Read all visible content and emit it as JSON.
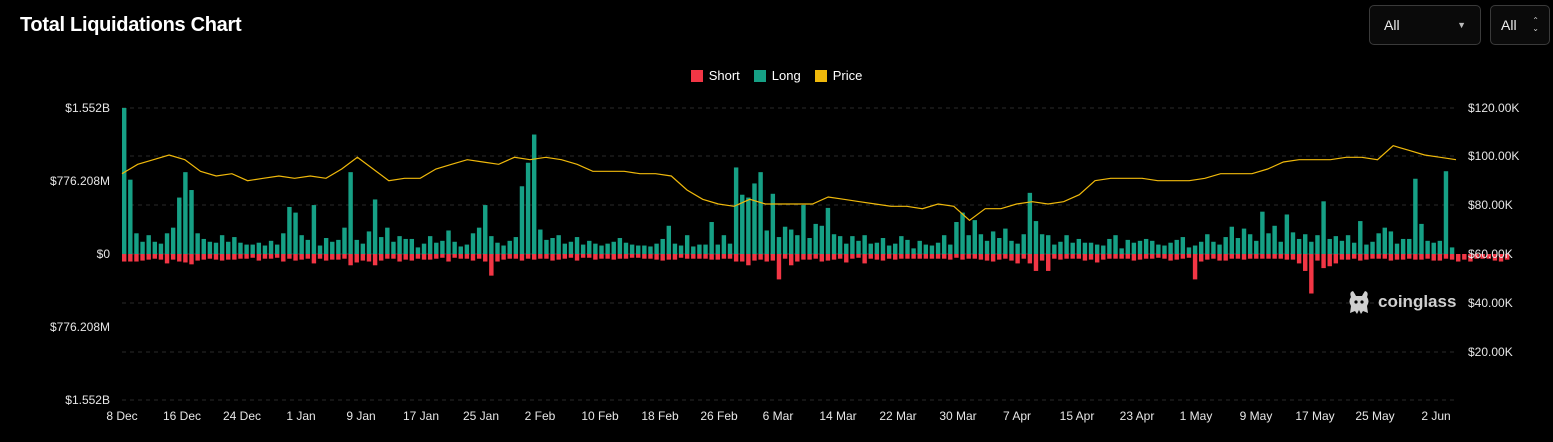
{
  "header": {
    "title": "Total Liquidations Chart",
    "range_select": "All",
    "coin_select": "All"
  },
  "legend": [
    {
      "label": "Short",
      "color": "#f23645"
    },
    {
      "label": "Long",
      "color": "#16a085"
    },
    {
      "label": "Price",
      "color": "#f0b90b"
    }
  ],
  "watermark": "coinglass",
  "chart_data": {
    "type": "bar",
    "title": "Total Liquidations Chart",
    "series": [
      {
        "name": "Long",
        "color": "#16a085",
        "values": [
          1.552,
          0.79,
          0.22,
          0.13,
          0.2,
          0.13,
          0.11,
          0.22,
          0.28,
          0.6,
          0.87,
          0.68,
          0.22,
          0.16,
          0.13,
          0.12,
          0.2,
          0.13,
          0.18,
          0.12,
          0.1,
          0.1,
          0.12,
          0.09,
          0.14,
          0.1,
          0.22,
          0.5,
          0.44,
          0.2,
          0.15,
          0.52,
          0.09,
          0.17,
          0.13,
          0.15,
          0.28,
          0.87,
          0.15,
          0.11,
          0.24,
          0.58,
          0.18,
          0.28,
          0.13,
          0.19,
          0.16,
          0.16,
          0.07,
          0.11,
          0.19,
          0.12,
          0.14,
          0.25,
          0.13,
          0.08,
          0.1,
          0.22,
          0.28,
          0.52,
          0.19,
          0.12,
          0.09,
          0.14,
          0.18,
          0.72,
          0.97,
          1.27,
          0.26,
          0.15,
          0.17,
          0.2,
          0.11,
          0.13,
          0.18,
          0.1,
          0.14,
          0.11,
          0.09,
          0.11,
          0.13,
          0.17,
          0.12,
          0.1,
          0.09,
          0.09,
          0.08,
          0.11,
          0.16,
          0.3,
          0.11,
          0.09,
          0.2,
          0.08,
          0.1,
          0.1,
          0.34,
          0.1,
          0.2,
          0.11,
          0.92,
          0.63,
          0.6,
          0.75,
          0.87,
          0.25,
          0.64,
          0.18,
          0.29,
          0.26,
          0.2,
          0.52,
          0.17,
          0.32,
          0.3,
          0.49,
          0.21,
          0.19,
          0.11,
          0.19,
          0.14,
          0.2,
          0.11,
          0.12,
          0.17,
          0.09,
          0.11,
          0.19,
          0.15,
          0.06,
          0.14,
          0.1,
          0.09,
          0.12,
          0.2,
          0.1,
          0.34,
          0.44,
          0.2,
          0.36,
          0.21,
          0.14,
          0.24,
          0.17,
          0.27,
          0.14,
          0.11,
          0.21,
          0.65,
          0.35,
          0.21,
          0.2,
          0.1,
          0.13,
          0.2,
          0.12,
          0.16,
          0.12,
          0.12,
          0.1,
          0.09,
          0.16,
          0.2,
          0.06,
          0.15,
          0.12,
          0.14,
          0.16,
          0.14,
          0.1,
          0.09,
          0.12,
          0.15,
          0.18,
          0.07,
          0.09,
          0.13,
          0.21,
          0.13,
          0.1,
          0.18,
          0.29,
          0.17,
          0.27,
          0.21,
          0.14,
          0.45,
          0.22,
          0.3,
          0.13,
          0.42,
          0.23,
          0.16,
          0.21,
          0.13,
          0.2,
          0.56,
          0.16,
          0.19,
          0.14,
          0.2,
          0.12,
          0.35,
          0.1,
          0.13,
          0.22,
          0.28,
          0.24,
          0.11,
          0.16,
          0.16,
          0.8,
          0.32,
          0.14,
          0.12,
          0.14,
          0.88,
          0.07
        ]
      },
      {
        "name": "Short",
        "color": "#f23645",
        "values": [
          0.08,
          0.08,
          0.08,
          0.07,
          0.06,
          0.05,
          0.06,
          0.1,
          0.06,
          0.08,
          0.09,
          0.11,
          0.07,
          0.06,
          0.05,
          0.06,
          0.07,
          0.06,
          0.06,
          0.05,
          0.05,
          0.04,
          0.07,
          0.05,
          0.05,
          0.04,
          0.08,
          0.05,
          0.07,
          0.06,
          0.05,
          0.1,
          0.05,
          0.07,
          0.06,
          0.06,
          0.05,
          0.12,
          0.09,
          0.07,
          0.08,
          0.12,
          0.07,
          0.05,
          0.05,
          0.08,
          0.06,
          0.07,
          0.05,
          0.06,
          0.06,
          0.05,
          0.04,
          0.08,
          0.04,
          0.05,
          0.05,
          0.07,
          0.05,
          0.08,
          0.23,
          0.08,
          0.06,
          0.05,
          0.05,
          0.07,
          0.05,
          0.06,
          0.05,
          0.05,
          0.07,
          0.06,
          0.05,
          0.04,
          0.07,
          0.04,
          0.04,
          0.06,
          0.05,
          0.05,
          0.06,
          0.05,
          0.05,
          0.04,
          0.04,
          0.05,
          0.05,
          0.06,
          0.07,
          0.06,
          0.06,
          0.04,
          0.05,
          0.05,
          0.05,
          0.05,
          0.06,
          0.06,
          0.05,
          0.05,
          0.08,
          0.08,
          0.12,
          0.07,
          0.06,
          0.08,
          0.07,
          0.27,
          0.05,
          0.12,
          0.08,
          0.06,
          0.06,
          0.05,
          0.08,
          0.07,
          0.06,
          0.05,
          0.09,
          0.05,
          0.04,
          0.1,
          0.05,
          0.06,
          0.07,
          0.05,
          0.06,
          0.05,
          0.05,
          0.05,
          0.05,
          0.05,
          0.05,
          0.05,
          0.05,
          0.06,
          0.04,
          0.06,
          0.05,
          0.05,
          0.06,
          0.07,
          0.08,
          0.06,
          0.05,
          0.07,
          0.1,
          0.05,
          0.1,
          0.18,
          0.07,
          0.18,
          0.05,
          0.06,
          0.05,
          0.05,
          0.05,
          0.07,
          0.06,
          0.09,
          0.06,
          0.05,
          0.05,
          0.05,
          0.05,
          0.07,
          0.06,
          0.05,
          0.05,
          0.04,
          0.05,
          0.07,
          0.06,
          0.05,
          0.04,
          0.27,
          0.08,
          0.06,
          0.05,
          0.07,
          0.07,
          0.05,
          0.05,
          0.06,
          0.05,
          0.05,
          0.05,
          0.05,
          0.05,
          0.05,
          0.06,
          0.06,
          0.1,
          0.18,
          0.42,
          0.07,
          0.15,
          0.13,
          0.1,
          0.06,
          0.06,
          0.05,
          0.07,
          0.06,
          0.05,
          0.05,
          0.05,
          0.07,
          0.06,
          0.06,
          0.05,
          0.06,
          0.06,
          0.05,
          0.07,
          0.07,
          0.05,
          0.06,
          0.08,
          0.06,
          0.08,
          0.05,
          0.05,
          0.05,
          0.07,
          0.08,
          0.06
        ]
      },
      {
        "name": "Price",
        "color": "#f0b90b",
        "values": [
          97,
          101,
          103,
          105,
          103,
          98,
          96,
          97,
          94,
          95,
          96,
          95,
          96,
          95,
          99,
          104,
          99,
          94,
          95,
          95,
          99,
          101,
          103,
          102,
          101,
          104,
          103,
          104,
          103,
          101,
          98,
          98,
          98,
          97,
          97,
          96,
          90,
          86,
          84,
          83,
          86,
          84,
          84,
          84,
          84,
          87,
          86,
          85,
          84,
          83,
          83,
          82,
          84,
          83,
          77,
          82,
          82,
          84,
          85,
          84,
          85,
          88,
          94,
          95,
          95,
          95,
          94,
          94,
          94,
          95,
          97,
          97,
          97,
          99,
          102,
          103,
          103,
          103,
          104,
          104,
          103,
          109,
          107,
          105,
          104,
          103
        ]
      }
    ],
    "x_tick_labels": [
      "8 Dec",
      "16 Dec",
      "24 Dec",
      "1 Jan",
      "9 Jan",
      "17 Jan",
      "25 Jan",
      "2 Feb",
      "10 Feb",
      "18 Feb",
      "26 Feb",
      "6 Mar",
      "14 Mar",
      "22 Mar",
      "30 Mar",
      "7 Apr",
      "15 Apr",
      "23 Apr",
      "1 May",
      "9 May",
      "17 May",
      "25 May",
      "2 Jun"
    ],
    "y_left_tick_labels": [
      "$1.552B",
      "$776.208M",
      "$0",
      "$776.208M",
      "$1.552B"
    ],
    "y_left_range": [
      -1.552,
      1.552
    ],
    "y_left_unit": "billion USD",
    "y_right_tick_labels": [
      "$120.00K",
      "$100.00K",
      "$80.00K",
      "$60.00K",
      "$40.00K",
      "$20.00K"
    ],
    "y_right_range": [
      0,
      120
    ],
    "y_right_unit": "thousand USD",
    "grid": true,
    "legend_position": "top-center"
  }
}
